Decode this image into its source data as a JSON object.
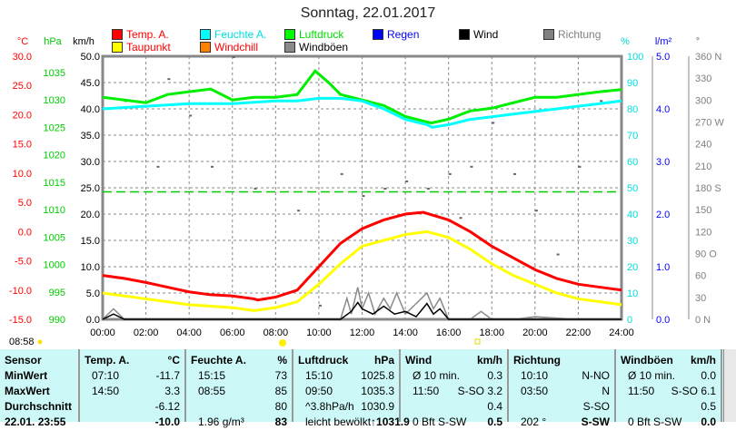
{
  "title": "Sonntag, 22.01.2017",
  "legend": [
    {
      "label": "Temp. A.",
      "color": "#ff0000",
      "text_color": "#ff0000"
    },
    {
      "label": "Feuchte A.",
      "color": "#00ffff",
      "text_color": "#00e0e0"
    },
    {
      "label": "Luftdruck",
      "color": "#00ff00",
      "text_color": "#00dd00"
    },
    {
      "label": "Regen",
      "color": "#0000ff",
      "text_color": "#0000ff"
    },
    {
      "label": "Wind",
      "color": "#000000",
      "text_color": "#000000"
    },
    {
      "label": "Richtung",
      "color": "#808080",
      "text_color": "#808080"
    },
    {
      "label": "Taupunkt",
      "color": "#ffff00",
      "text_color": "#ff0000"
    },
    {
      "label": "Windchill",
      "color": "#ff8000",
      "text_color": "#ff0000"
    },
    {
      "label": "Windböen",
      "color": "#8a8a8a",
      "text_color": "#000000"
    }
  ],
  "units": {
    "temp": "°C",
    "pressure": "hPa",
    "wind": "km/h",
    "humidity": "%",
    "rain": "l/m²",
    "direction": "°"
  },
  "sunrise": "08:58",
  "chart_data": {
    "type": "line",
    "title": "Sonntag, 22.01.2017",
    "x_ticks": [
      "00:00",
      "02:00",
      "04:00",
      "06:00",
      "08:00",
      "10:00",
      "12:00",
      "14:00",
      "16:00",
      "18:00",
      "20:00",
      "22:00",
      "24:00"
    ],
    "axes": {
      "temp": {
        "range": [
          -15,
          30
        ],
        "ticks": [
          "30.0",
          "25.0",
          "20.0",
          "15.0",
          "10.0",
          "5.0",
          "0.0",
          "-5.0",
          "-10.0",
          "-15.0"
        ]
      },
      "pressure": {
        "range": [
          990,
          1035
        ],
        "ticks": [
          "1035",
          "1030",
          "1025",
          "1020",
          "1015",
          "1010",
          "1005",
          "1000",
          "995",
          "990"
        ]
      },
      "wind": {
        "range": [
          0,
          50
        ],
        "ticks": [
          "50.0",
          "45.0",
          "40.0",
          "35.0",
          "30.0",
          "25.0",
          "20.0",
          "15.0",
          "10.0",
          "5.0",
          "0.0"
        ]
      },
      "humidity": {
        "range": [
          0,
          100
        ],
        "ticks": [
          "100",
          "90",
          "80",
          "70",
          "60",
          "50",
          "40",
          "30",
          "20",
          "10",
          "0"
        ]
      },
      "rain": {
        "range": [
          0,
          5
        ],
        "ticks": [
          "5.0",
          "4.0",
          "3.0",
          "2.0",
          "1.0",
          "0.0"
        ]
      },
      "direction": {
        "range": [
          0,
          360
        ],
        "ticks": [
          "360 N",
          "330",
          "300",
          "270 W",
          "240",
          "210",
          "180 S",
          "150",
          "120",
          "90  O",
          "60",
          "30",
          "0    N"
        ]
      }
    },
    "reference_pressure": 1013.25,
    "series": [
      {
        "name": "Luftdruck",
        "axis": "pressure",
        "color": "#00ee00",
        "x": [
          0,
          1,
          2,
          3,
          4,
          5,
          6,
          7,
          8,
          9,
          9.83,
          10.5,
          11,
          12,
          13,
          14,
          15,
          15.2,
          16,
          17,
          18,
          19,
          20,
          21,
          22,
          23,
          24
        ],
        "y": [
          1030.5,
          1030,
          1029.5,
          1031,
          1031.5,
          1032,
          1030,
          1030.5,
          1030.5,
          1031,
          1035.3,
          1033,
          1031,
          1030,
          1029,
          1027,
          1026,
          1025.8,
          1026.5,
          1028,
          1028.5,
          1029.5,
          1030.5,
          1030.5,
          1031,
          1031.5,
          1031.9
        ]
      },
      {
        "name": "Feuchte A.",
        "axis": "humidity",
        "color": "#00ffff",
        "x": [
          0,
          2,
          4,
          6,
          8,
          9,
          10,
          11,
          12,
          13,
          14,
          15,
          15.25,
          16,
          17,
          18,
          19,
          20,
          21,
          22,
          23,
          24
        ],
        "y": [
          80,
          81,
          82,
          82,
          83,
          83,
          84,
          84,
          83,
          80,
          76,
          74,
          73,
          74,
          76,
          77,
          78,
          79,
          80,
          81,
          82,
          83
        ]
      },
      {
        "name": "Temp. A.",
        "axis": "temp",
        "color": "#ff0000",
        "x": [
          0,
          1,
          2,
          3,
          4,
          5,
          6,
          7,
          7.17,
          8,
          9,
          10,
          11,
          12,
          13,
          14,
          14.83,
          16,
          17,
          18,
          19,
          20,
          21,
          22,
          23,
          24
        ],
        "y": [
          -7.5,
          -8,
          -8.7,
          -9.5,
          -10.3,
          -10.8,
          -11,
          -11.5,
          -11.7,
          -11.2,
          -10,
          -6,
          -2,
          0.5,
          2,
          3,
          3.3,
          2,
          0,
          -2.5,
          -4.5,
          -6.5,
          -8,
          -9,
          -9.5,
          -10
        ]
      },
      {
        "name": "Taupunkt",
        "axis": "temp",
        "color": "#ffff00",
        "x": [
          0,
          2,
          4,
          6,
          7,
          8,
          9,
          10,
          11,
          12,
          13,
          14,
          15,
          16,
          17,
          18,
          19,
          20,
          21,
          22,
          23,
          24
        ],
        "y": [
          -10.5,
          -11.5,
          -12.5,
          -13,
          -13.5,
          -13,
          -12,
          -9,
          -5.5,
          -2.5,
          -1.5,
          -0.5,
          0,
          -1,
          -3,
          -5.5,
          -7.5,
          -9,
          -10.5,
          -11.5,
          -12,
          -12.5
        ]
      },
      {
        "name": "Windböen",
        "axis": "wind",
        "color": "#8a8a8a",
        "x": [
          0,
          0.5,
          1,
          3,
          6,
          9,
          11,
          11.3,
          11.5,
          11.8,
          12,
          12.3,
          12.6,
          13,
          13.3,
          13.6,
          14,
          14.5,
          15,
          15.3,
          15.6,
          16,
          17,
          17.5,
          18,
          19,
          20,
          22,
          24
        ],
        "y": [
          0,
          2,
          0,
          0,
          0,
          0,
          0,
          4,
          1,
          6.1,
          2,
          5,
          1,
          4,
          2,
          5,
          1,
          3,
          5,
          2,
          4,
          0,
          0,
          1.5,
          0,
          0,
          0.5,
          0,
          0
        ]
      },
      {
        "name": "Wind",
        "axis": "wind",
        "color": "#000000",
        "x": [
          0,
          0.5,
          1,
          6,
          11,
          11.5,
          11.8,
          12,
          12.5,
          13,
          13.5,
          14,
          14.5,
          15,
          15.3,
          15.6,
          16,
          24
        ],
        "y": [
          0,
          1,
          0,
          0,
          0,
          1.5,
          3.2,
          2,
          1,
          2.5,
          1,
          1.5,
          0.5,
          3,
          1,
          2,
          0,
          0
        ]
      }
    ]
  },
  "table": {
    "columns": [
      {
        "header": "Sensor",
        "unit": "",
        "rows": [
          [
            "MinWert",
            ""
          ],
          [
            "MaxWert",
            ""
          ],
          [
            "Durchschnitt",
            ""
          ],
          [
            "22.01. 23:55",
            ""
          ]
        ]
      },
      {
        "header": "Temp. A.",
        "unit": "°C",
        "rows": [
          [
            "07:10",
            "-11.7"
          ],
          [
            "14:50",
            "3.3"
          ],
          [
            "",
            "-6.12"
          ],
          [
            "",
            "-10.0"
          ]
        ]
      },
      {
        "header": "Feuchte A.",
        "unit": "%",
        "rows": [
          [
            "15:15",
            "73"
          ],
          [
            "08:55",
            "85"
          ],
          [
            "",
            "80"
          ],
          [
            "1.96 g/m³",
            "83"
          ]
        ]
      },
      {
        "header": "Luftdruck",
        "unit": "hPa",
        "rows": [
          [
            "15:10",
            "1025.8"
          ],
          [
            "09:50",
            "1035.3"
          ],
          [
            "^3.8hPa/h",
            "1030.9"
          ],
          [
            "leicht bewölkt",
            "↑1031.9"
          ]
        ]
      },
      {
        "header": "Wind",
        "unit": "km/h",
        "rows": [
          [
            "Ø 10 min.",
            "0.3"
          ],
          [
            "11:50",
            "S-SO 3.2"
          ],
          [
            "",
            "0.4"
          ],
          [
            "0 Bft S-SW",
            "0.5"
          ]
        ]
      },
      {
        "header": "Richtung",
        "unit": "",
        "rows": [
          [
            "10:10",
            "N-NO"
          ],
          [
            "03:50",
            "N"
          ],
          [
            "",
            "S-SO"
          ],
          [
            "202 °",
            "S-SW"
          ]
        ]
      },
      {
        "header": "Windböen",
        "unit": "km/h",
        "rows": [
          [
            "Ø 10 min.",
            "0.0"
          ],
          [
            "11:50",
            "S-SO 6.1"
          ],
          [
            "",
            "0.5"
          ],
          [
            "0 Bft S-SW",
            "0.0"
          ]
        ]
      }
    ]
  }
}
